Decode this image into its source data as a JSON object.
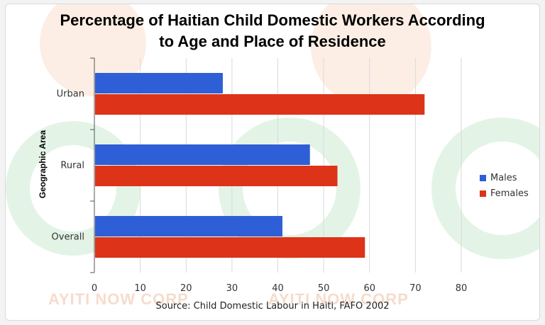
{
  "title_lines": [
    "Percentage of Haitian Child Domestic Workers According",
    "to Age and Place of Residence"
  ],
  "watermark": {
    "text": "AYITI NOW CORP",
    "colors": {
      "green": "#d8f0dd",
      "orange": "#fbe3d6",
      "gray": "#e6e6ee"
    }
  },
  "source": "Source: Child Domestic Labour in Haiti, FAFO 2002",
  "chart_data": {
    "type": "bar",
    "orientation": "horizontal",
    "ylabel": "Geographic Area",
    "xlabel": "",
    "categories": [
      "Urban",
      "Rural",
      "Overall"
    ],
    "series": [
      {
        "name": "Males",
        "color": "#2e5fd6",
        "values": [
          28,
          47,
          41
        ]
      },
      {
        "name": "Females",
        "color": "#dd3318",
        "values": [
          72,
          53,
          59
        ]
      }
    ],
    "xlim": [
      0,
      80
    ],
    "xticks": [
      "0",
      "10",
      "20",
      "30",
      "40",
      "50",
      "60",
      "70",
      "80"
    ],
    "grid": true,
    "legend_position": "right"
  }
}
